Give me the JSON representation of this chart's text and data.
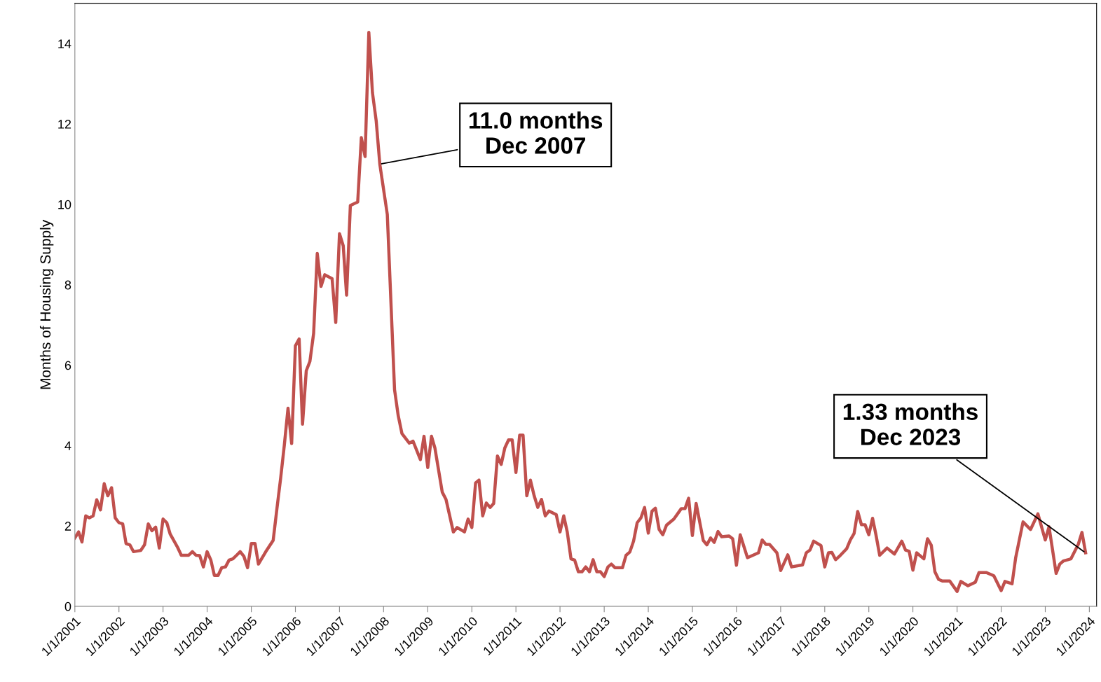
{
  "chart_data": {
    "type": "line",
    "ylabel": "Months of Housing Supply",
    "xlim": [
      "2001-01-01",
      "2024-03-01"
    ],
    "ylim": [
      0,
      15
    ],
    "yticks": [
      0,
      2,
      4,
      6,
      8,
      10,
      12,
      14
    ],
    "xticks": [
      {
        "value": "2001-01-01",
        "label": "1/1/2001"
      },
      {
        "value": "2002-01-01",
        "label": "1/1/2002"
      },
      {
        "value": "2003-01-01",
        "label": "1/1/2003"
      },
      {
        "value": "2004-01-01",
        "label": "1/1/2004"
      },
      {
        "value": "2005-01-01",
        "label": "1/1/2005"
      },
      {
        "value": "2006-01-01",
        "label": "1/1/2006"
      },
      {
        "value": "2007-01-01",
        "label": "1/1/2007"
      },
      {
        "value": "2008-01-01",
        "label": "1/1/2008"
      },
      {
        "value": "2009-01-01",
        "label": "1/1/2009"
      },
      {
        "value": "2010-01-01",
        "label": "1/1/2010"
      },
      {
        "value": "2011-01-01",
        "label": "1/1/2011"
      },
      {
        "value": "2012-01-01",
        "label": "1/1/2012"
      },
      {
        "value": "2013-01-01",
        "label": "1/1/2013"
      },
      {
        "value": "2014-01-01",
        "label": "1/1/2014"
      },
      {
        "value": "2015-01-01",
        "label": "1/1/2015"
      },
      {
        "value": "2016-01-01",
        "label": "1/1/2016"
      },
      {
        "value": "2017-01-01",
        "label": "1/1/2017"
      },
      {
        "value": "2018-01-01",
        "label": "1/1/2018"
      },
      {
        "value": "2019-01-01",
        "label": "1/1/2019"
      },
      {
        "value": "2020-01-01",
        "label": "1/1/2020"
      },
      {
        "value": "2021-01-01",
        "label": "1/1/2021"
      },
      {
        "value": "2022-01-01",
        "label": "1/1/2022"
      },
      {
        "value": "2023-01-01",
        "label": "1/1/2023"
      },
      {
        "value": "2024-01-01",
        "label": "1/1/2024"
      }
    ],
    "grid": false,
    "legend": false,
    "marker": "none",
    "line_style": "solid",
    "annotations": [
      {
        "text": "11.0 months\nDec 2007",
        "x": "2007-12",
        "y": 11.0
      },
      {
        "text": "1.33 months\nDec 2023",
        "x": "2023-12",
        "y": 1.33
      }
    ],
    "series": [
      {
        "color": "#c0504d",
        "x": [
          "2001-01",
          "2001-02",
          "2001-03",
          "2001-04",
          "2001-05",
          "2001-06",
          "2001-07",
          "2001-08",
          "2001-09",
          "2001-10",
          "2001-11",
          "2001-12",
          "2002-01",
          "2002-02",
          "2002-03",
          "2002-04",
          "2002-05",
          "2002-07",
          "2002-08",
          "2002-09",
          "2002-10",
          "2002-11",
          "2002-12",
          "2003-01",
          "2003-02",
          "2003-03",
          "2003-05",
          "2003-06",
          "2003-08",
          "2003-09",
          "2003-10",
          "2003-11",
          "2003-12",
          "2004-01",
          "2004-02",
          "2004-03",
          "2004-04",
          "2004-05",
          "2004-06",
          "2004-07",
          "2004-08",
          "2004-09",
          "2004-10",
          "2004-11",
          "2004-12",
          "2005-01",
          "2005-02",
          "2005-03",
          "2005-05",
          "2005-07",
          "2005-08",
          "2005-09",
          "2005-10",
          "2005-11",
          "2005-12",
          "2006-01",
          "2006-02",
          "2006-03",
          "2006-04",
          "2006-05",
          "2006-06",
          "2006-07",
          "2006-08",
          "2006-09",
          "2006-11",
          "2006-12",
          "2007-01",
          "2007-02",
          "2007-03",
          "2007-04",
          "2007-06",
          "2007-07",
          "2007-08",
          "2007-09",
          "2007-10",
          "2007-11",
          "2007-12",
          "2008-02",
          "2008-04",
          "2008-05",
          "2008-06",
          "2008-08",
          "2008-09",
          "2008-11",
          "2008-12",
          "2009-01",
          "2009-02",
          "2009-03",
          "2009-05",
          "2009-06",
          "2009-08",
          "2009-09",
          "2009-11",
          "2009-12",
          "2010-01",
          "2010-02",
          "2010-03",
          "2010-04",
          "2010-05",
          "2010-06",
          "2010-07",
          "2010-08",
          "2010-09",
          "2010-10",
          "2010-11",
          "2010-12",
          "2011-01",
          "2011-02",
          "2011-03",
          "2011-04",
          "2011-05",
          "2011-06",
          "2011-07",
          "2011-08",
          "2011-09",
          "2011-10",
          "2011-12",
          "2012-01",
          "2012-02",
          "2012-03",
          "2012-04",
          "2012-05",
          "2012-06",
          "2012-07",
          "2012-08",
          "2012-09",
          "2012-10",
          "2012-11",
          "2012-12",
          "2013-01",
          "2013-02",
          "2013-03",
          "2013-04",
          "2013-06",
          "2013-07",
          "2013-08",
          "2013-09",
          "2013-10",
          "2013-11",
          "2013-12",
          "2014-01",
          "2014-02",
          "2014-03",
          "2014-04",
          "2014-05",
          "2014-06",
          "2014-08",
          "2014-10",
          "2014-11",
          "2014-12",
          "2015-01",
          "2015-02",
          "2015-04",
          "2015-05",
          "2015-06",
          "2015-07",
          "2015-08",
          "2015-09",
          "2015-11",
          "2015-12",
          "2016-01",
          "2016-02",
          "2016-04",
          "2016-07",
          "2016-08",
          "2016-09",
          "2016-10",
          "2016-12",
          "2017-01",
          "2017-03",
          "2017-04",
          "2017-07",
          "2017-08",
          "2017-09",
          "2017-10",
          "2017-12",
          "2018-01",
          "2018-02",
          "2018-03",
          "2018-04",
          "2018-05",
          "2018-07",
          "2018-08",
          "2018-09",
          "2018-10",
          "2018-11",
          "2018-12",
          "2019-01",
          "2019-02",
          "2019-03",
          "2019-04",
          "2019-06",
          "2019-08",
          "2019-10",
          "2019-11",
          "2019-12",
          "2020-01",
          "2020-02",
          "2020-04",
          "2020-05",
          "2020-06",
          "2020-07",
          "2020-08",
          "2020-09",
          "2020-11",
          "2021-01",
          "2021-02",
          "2021-04",
          "2021-06",
          "2021-07",
          "2021-09",
          "2021-11",
          "2022-01",
          "2022-02",
          "2022-04",
          "2022-05",
          "2022-07",
          "2022-09",
          "2022-11",
          "2023-01",
          "2023-02",
          "2023-04",
          "2023-05",
          "2023-06",
          "2023-08",
          "2023-10",
          "2023-11",
          "2023-12"
        ],
        "values": [
          1.7,
          1.85,
          1.6,
          2.25,
          2.2,
          2.25,
          2.65,
          2.4,
          3.05,
          2.75,
          2.95,
          2.2,
          2.08,
          2.05,
          1.56,
          1.53,
          1.36,
          1.39,
          1.53,
          2.05,
          1.88,
          1.97,
          1.45,
          2.17,
          2.08,
          1.8,
          1.47,
          1.27,
          1.27,
          1.36,
          1.27,
          1.26,
          0.98,
          1.36,
          1.15,
          0.77,
          0.77,
          0.96,
          0.98,
          1.15,
          1.18,
          1.27,
          1.36,
          1.24,
          0.96,
          1.56,
          1.56,
          1.05,
          1.36,
          1.64,
          2.43,
          3.19,
          4.0,
          4.93,
          4.05,
          6.48,
          6.65,
          4.53,
          5.86,
          6.09,
          6.79,
          8.78,
          7.96,
          8.25,
          8.15,
          7.06,
          9.27,
          8.97,
          7.74,
          9.97,
          10.06,
          11.66,
          11.19,
          14.28,
          12.78,
          12.08,
          11.0,
          9.75,
          5.39,
          4.75,
          4.3,
          4.06,
          4.11,
          3.65,
          4.23,
          3.45,
          4.23,
          3.94,
          2.84,
          2.66,
          1.85,
          1.96,
          1.85,
          2.17,
          1.96,
          3.07,
          3.14,
          2.25,
          2.57,
          2.46,
          2.56,
          3.74,
          3.53,
          3.94,
          4.14,
          4.14,
          3.33,
          4.26,
          4.26,
          2.75,
          3.14,
          2.75,
          2.46,
          2.66,
          2.25,
          2.37,
          2.28,
          1.85,
          2.25,
          1.85,
          1.18,
          1.15,
          0.86,
          0.86,
          0.98,
          0.86,
          1.16,
          0.86,
          0.86,
          0.74,
          0.98,
          1.05,
          0.96,
          0.96,
          1.27,
          1.35,
          1.62,
          2.08,
          2.2,
          2.46,
          1.82,
          2.37,
          2.44,
          1.91,
          1.78,
          2.02,
          2.17,
          2.43,
          2.43,
          2.69,
          1.76,
          2.56,
          1.64,
          1.53,
          1.7,
          1.59,
          1.86,
          1.73,
          1.75,
          1.68,
          1.02,
          1.78,
          1.21,
          1.33,
          1.65,
          1.54,
          1.54,
          1.33,
          0.89,
          1.28,
          0.98,
          1.03,
          1.33,
          1.4,
          1.62,
          1.51,
          0.98,
          1.33,
          1.34,
          1.16,
          1.24,
          1.43,
          1.65,
          1.81,
          2.36,
          2.03,
          2.03,
          1.78,
          2.19,
          1.78,
          1.27,
          1.45,
          1.3,
          1.62,
          1.4,
          1.37,
          0.9,
          1.33,
          1.18,
          1.68,
          1.52,
          0.86,
          0.67,
          0.63,
          0.63,
          0.37,
          0.62,
          0.51,
          0.6,
          0.84,
          0.84,
          0.76,
          0.39,
          0.62,
          0.56,
          1.21,
          2.1,
          1.91,
          2.3,
          1.65,
          1.98,
          0.82,
          1.05,
          1.13,
          1.18,
          1.54,
          1.84,
          1.33
        ]
      }
    ]
  }
}
